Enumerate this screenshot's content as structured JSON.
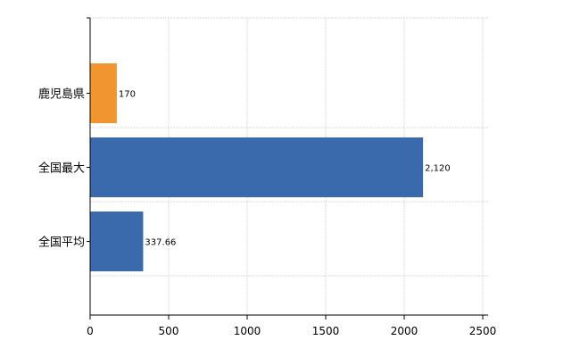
{
  "chart_data": {
    "type": "bar",
    "orientation": "horizontal",
    "categories": [
      "鹿児島県",
      "全国最大",
      "全国平均"
    ],
    "values": [
      170,
      2120,
      337.66
    ],
    "value_labels": [
      "170",
      "2,120",
      "337.66"
    ],
    "colors": [
      "#f0952f",
      "#3a6aab",
      "#3a6aab"
    ],
    "xlim": [
      0,
      2500
    ],
    "xticks": [
      "0",
      "500",
      "1000",
      "1500",
      "2000",
      "2500"
    ],
    "xtick_values": [
      0,
      500,
      1000,
      1500,
      2000,
      2500
    ],
    "grid": true,
    "legend": "none"
  }
}
